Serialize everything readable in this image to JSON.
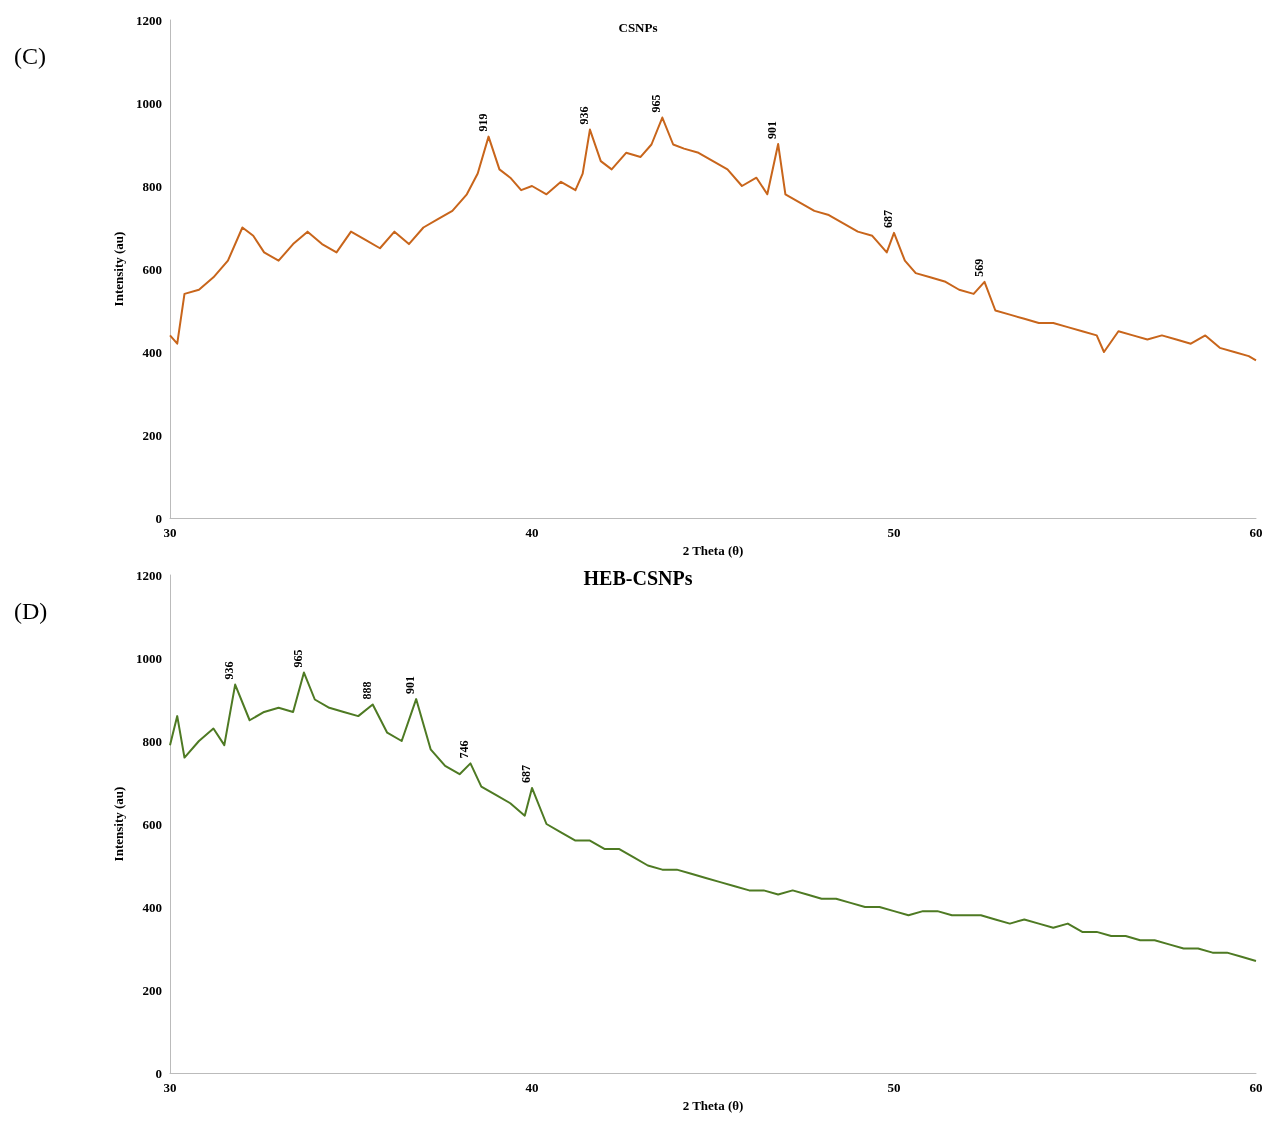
{
  "chart_data": [
    {
      "type": "line",
      "title": "CSNPs",
      "xlabel": "2 Theta (θ)",
      "ylabel": "Intensity (au)",
      "xlim": [
        30,
        60
      ],
      "xticks": [
        30,
        40,
        50,
        60
      ],
      "ylim": [
        0,
        1200
      ],
      "yticks": [
        0,
        200,
        400,
        600,
        800,
        1000,
        1200
      ],
      "marker": "none",
      "line_style": "solid",
      "series": [
        {
          "color": "#c8651b",
          "x": [
            30,
            30.2,
            30.4,
            30.8,
            31.2,
            31.6,
            32,
            32.3,
            32.6,
            33,
            33.4,
            33.8,
            34.2,
            34.6,
            35,
            35.4,
            35.8,
            36.2,
            36.6,
            37,
            37.4,
            37.8,
            38.2,
            38.5,
            38.8,
            39.1,
            39.4,
            39.7,
            40,
            40.4,
            40.8,
            41.2,
            41.4,
            41.6,
            41.9,
            42.2,
            42.6,
            43,
            43.3,
            43.6,
            43.9,
            44.2,
            44.6,
            45,
            45.4,
            45.8,
            46.2,
            46.5,
            46.8,
            47,
            47.4,
            47.8,
            48.2,
            48.6,
            49,
            49.4,
            49.8,
            50,
            50.3,
            50.6,
            51,
            51.4,
            51.8,
            52.2,
            52.5,
            52.8,
            53.2,
            53.6,
            54,
            54.4,
            54.8,
            55.2,
            55.6,
            55.8,
            56.2,
            56.6,
            57,
            57.4,
            57.8,
            58.2,
            58.6,
            59,
            59.4,
            59.8,
            60
          ],
          "values": [
            440,
            420,
            540,
            550,
            580,
            620,
            700,
            680,
            640,
            620,
            660,
            690,
            660,
            640,
            690,
            670,
            650,
            690,
            660,
            700,
            720,
            740,
            780,
            830,
            919,
            840,
            820,
            790,
            800,
            780,
            810,
            790,
            830,
            936,
            860,
            840,
            880,
            870,
            900,
            965,
            900,
            890,
            880,
            860,
            840,
            800,
            820,
            780,
            901,
            780,
            760,
            740,
            730,
            710,
            690,
            680,
            640,
            687,
            620,
            590,
            580,
            570,
            550,
            540,
            569,
            500,
            490,
            480,
            470,
            470,
            460,
            450,
            440,
            400,
            450,
            440,
            430,
            440,
            430,
            420,
            440,
            410,
            400,
            390,
            380
          ]
        }
      ],
      "annotations": [
        "(C)",
        {
          "text": "919",
          "x": 38.8,
          "y": 919
        },
        {
          "text": "936",
          "x": 41.6,
          "y": 936
        },
        {
          "text": "965",
          "x": 43.6,
          "y": 965
        },
        {
          "text": "901",
          "x": 46.8,
          "y": 901
        },
        {
          "text": "687",
          "x": 50,
          "y": 687
        },
        {
          "text": "569",
          "x": 52.5,
          "y": 569
        }
      ]
    },
    {
      "type": "line",
      "title": "HEB-CSNPs",
      "xlabel": "2 Theta (θ)",
      "ylabel": "Intensity (au)",
      "xlim": [
        30,
        60
      ],
      "xticks": [
        30,
        40,
        50,
        60
      ],
      "ylim": [
        0,
        1200
      ],
      "yticks": [
        0,
        200,
        400,
        600,
        800,
        1000,
        1200
      ],
      "marker": "none",
      "line_style": "solid",
      "series": [
        {
          "color": "#4e7a23",
          "x": [
            30,
            30.2,
            30.4,
            30.8,
            31.2,
            31.5,
            31.8,
            32.2,
            32.6,
            33,
            33.4,
            33.7,
            34,
            34.4,
            34.8,
            35.2,
            35.6,
            36,
            36.4,
            36.8,
            37.2,
            37.6,
            38,
            38.3,
            38.6,
            39,
            39.4,
            39.8,
            40,
            40.4,
            40.8,
            41.2,
            41.6,
            42,
            42.4,
            42.8,
            43.2,
            43.6,
            44,
            44.4,
            44.8,
            45.2,
            45.6,
            46,
            46.4,
            46.8,
            47.2,
            47.6,
            48,
            48.4,
            48.8,
            49.2,
            49.6,
            50,
            50.4,
            50.8,
            51.2,
            51.6,
            52,
            52.4,
            52.8,
            53.2,
            53.6,
            54,
            54.4,
            54.8,
            55.2,
            55.6,
            56,
            56.4,
            56.8,
            57.2,
            57.6,
            58,
            58.4,
            58.8,
            59.2,
            59.6,
            60
          ],
          "values": [
            790,
            860,
            760,
            800,
            830,
            790,
            936,
            850,
            870,
            880,
            870,
            965,
            900,
            880,
            870,
            860,
            888,
            820,
            800,
            901,
            780,
            740,
            720,
            746,
            690,
            670,
            650,
            620,
            687,
            600,
            580,
            560,
            560,
            540,
            540,
            520,
            500,
            490,
            490,
            480,
            470,
            460,
            450,
            440,
            440,
            430,
            440,
            430,
            420,
            420,
            410,
            400,
            400,
            390,
            380,
            390,
            390,
            380,
            380,
            380,
            370,
            360,
            370,
            360,
            350,
            360,
            340,
            340,
            330,
            330,
            320,
            320,
            310,
            300,
            300,
            290,
            290,
            280,
            270
          ]
        }
      ],
      "annotations": [
        "(D)",
        {
          "text": "936",
          "x": 31.8,
          "y": 936
        },
        {
          "text": "965",
          "x": 33.7,
          "y": 965
        },
        {
          "text": "888",
          "x": 35.6,
          "y": 888
        },
        {
          "text": "901",
          "x": 36.8,
          "y": 901
        },
        {
          "text": "746",
          "x": 38.3,
          "y": 746
        },
        {
          "text": "687",
          "x": 40,
          "y": 687
        }
      ]
    }
  ]
}
